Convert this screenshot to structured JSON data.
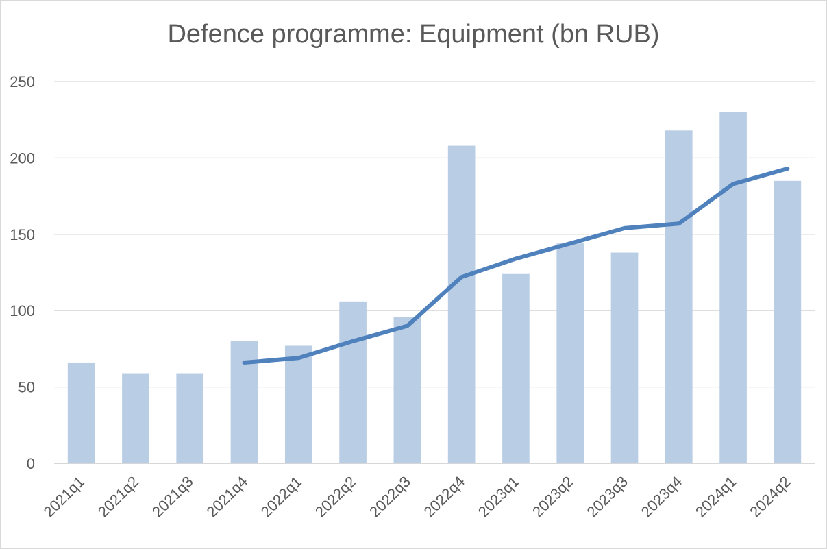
{
  "chart_data": {
    "type": "bar",
    "title": "Defence programme: Equipment (bn RUB)",
    "xlabel": "",
    "ylabel": "",
    "ylim": [
      0,
      250
    ],
    "yticks": [
      0,
      50,
      100,
      150,
      200,
      250
    ],
    "grid": true,
    "legend": "none",
    "categories": [
      "2021q1",
      "2021q2",
      "2021q3",
      "2021q4",
      "2022q1",
      "2022q2",
      "2022q3",
      "2022q4",
      "2023q1",
      "2023q2",
      "2023q3",
      "2023q4",
      "2024q1",
      "2024q2"
    ],
    "series": [
      {
        "type": "bar",
        "color": "#b9cde5",
        "values": [
          66,
          59,
          59,
          80,
          77,
          106,
          96,
          208,
          124,
          144,
          138,
          218,
          230,
          185
        ]
      },
      {
        "type": "line",
        "color": "#4f81bd",
        "values": [
          null,
          null,
          null,
          66,
          69,
          80,
          90,
          122,
          134,
          144,
          154,
          157,
          183,
          193
        ]
      }
    ]
  }
}
